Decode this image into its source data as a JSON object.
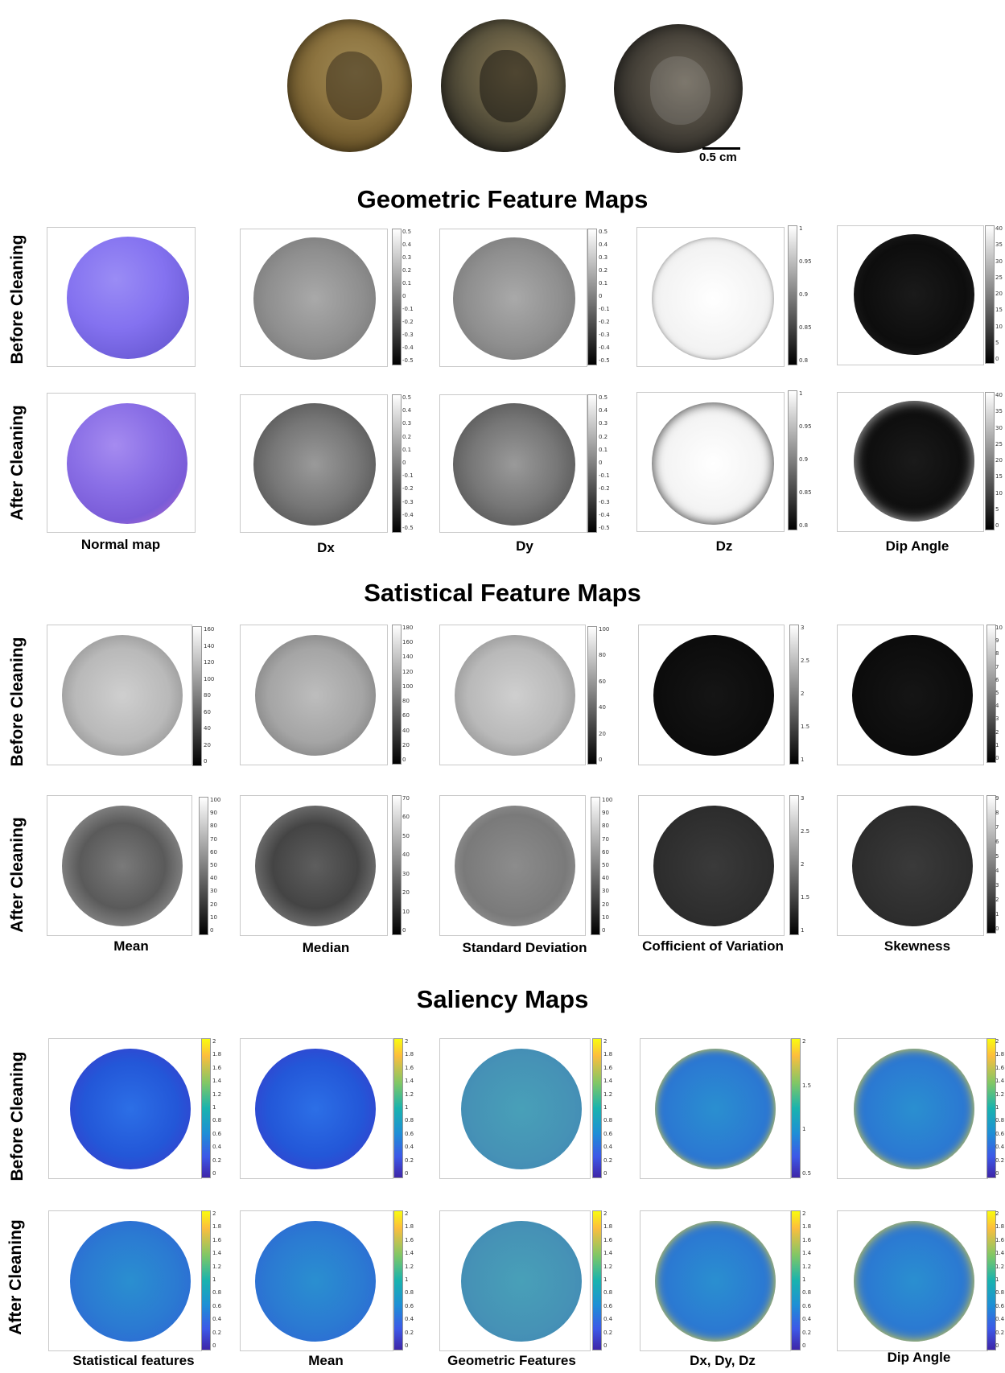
{
  "figure": {
    "scale_bar": "0.5 cm",
    "sections": [
      {
        "title": "Geometric Feature Maps",
        "row_labels": [
          "Before Cleaning",
          "After Cleaning"
        ],
        "column_labels": [
          "Normal map",
          "Dx",
          "Dy",
          "Dz",
          "Dip Angle"
        ]
      },
      {
        "title": "Satistical Feature Maps",
        "row_labels": [
          "Before Cleaning",
          "After Cleaning"
        ],
        "column_labels": [
          "Mean",
          "Median",
          "Standard Deviation",
          "Cofficient of Variation",
          "Skewness"
        ]
      },
      {
        "title": "Saliency Maps",
        "row_labels": [
          "Before Cleaning",
          "After Cleaning"
        ],
        "column_labels": [
          "Statistical features",
          "Mean",
          "Geometric Features",
          "Dx, Dy, Dz",
          "Dip Angle"
        ]
      }
    ]
  },
  "colorbars": {
    "dxdy": [
      "0.5",
      "0.4",
      "0.3",
      "0.2",
      "0.1",
      "0",
      "-0.1",
      "-0.2",
      "-0.3",
      "-0.4",
      "-0.5"
    ],
    "dz": [
      "1",
      "0.95",
      "0.9",
      "0.85",
      "0.8"
    ],
    "dip": [
      "40",
      "35",
      "30",
      "25",
      "20",
      "15",
      "10",
      "5",
      "0"
    ],
    "mean_before": [
      "160",
      "140",
      "120",
      "100",
      "80",
      "60",
      "40",
      "20",
      "0"
    ],
    "median_before": [
      "180",
      "160",
      "140",
      "120",
      "100",
      "80",
      "60",
      "40",
      "20",
      "0"
    ],
    "std_before": [
      "100",
      "80",
      "60",
      "40",
      "20",
      "0"
    ],
    "cv_before": [
      "3",
      "2.5",
      "2",
      "1.5",
      "1"
    ],
    "skew_before": [
      "10",
      "9",
      "8",
      "7",
      "6",
      "5",
      "4",
      "3",
      "2",
      "1",
      "0"
    ],
    "mean_after": [
      "100",
      "90",
      "80",
      "70",
      "60",
      "50",
      "40",
      "30",
      "20",
      "10",
      "0"
    ],
    "median_after": [
      "70",
      "60",
      "50",
      "40",
      "30",
      "20",
      "10",
      "0"
    ],
    "std_after": [
      "100",
      "90",
      "80",
      "70",
      "60",
      "50",
      "40",
      "30",
      "20",
      "10",
      "0"
    ],
    "cv_after": [
      "3",
      "2.5",
      "2",
      "1.5",
      "1"
    ],
    "skew_after": [
      "9",
      "8",
      "7",
      "6",
      "5",
      "4",
      "3",
      "2",
      "1",
      "0"
    ],
    "sal": [
      "2",
      "1.8",
      "1.6",
      "1.4",
      "1.2",
      "1",
      "0.8",
      "0.6",
      "0.4",
      "0.2",
      "0"
    ],
    "sal_dxdydz": [
      "2",
      "1.5",
      "1",
      "0.5"
    ]
  },
  "colors": {
    "gray_colormap": [
      "#ffffff",
      "#000000"
    ],
    "parula_colormap": [
      "#f9fb0e",
      "#19b3ae",
      "#3e26a8"
    ]
  }
}
